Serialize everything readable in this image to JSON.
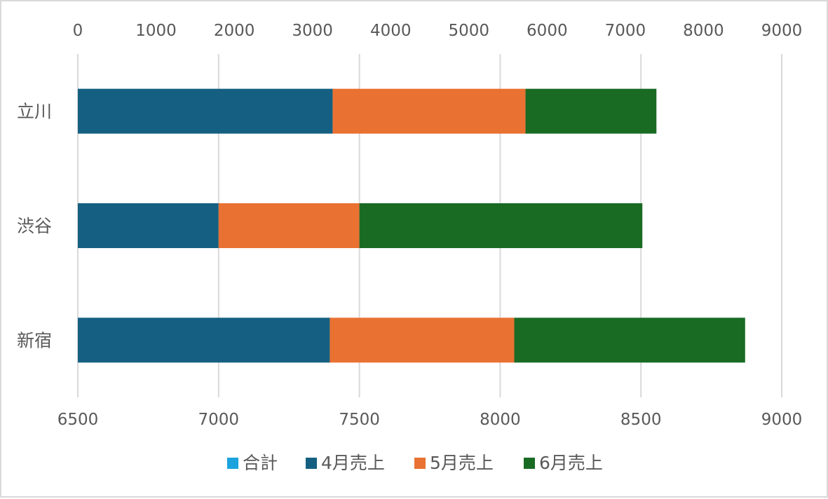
{
  "chart_data": {
    "type": "bar",
    "orientation": "horizontal",
    "stacked": true,
    "title": "",
    "categories": [
      "新宿",
      "渋谷",
      "立川"
    ],
    "axes": {
      "top": {
        "min": 0,
        "max": 9000,
        "step": 1000,
        "ticks": [
          "0",
          "1000",
          "2000",
          "3000",
          "4000",
          "5000",
          "6000",
          "7000",
          "8000",
          "9000"
        ]
      },
      "bottom": {
        "min": 6500,
        "max": 9000,
        "step": 500,
        "ticks": [
          "6500",
          "7000",
          "7500",
          "8000",
          "8500",
          "9000"
        ]
      }
    },
    "grid": true,
    "legend_position": "bottom",
    "series": [
      {
        "name": "合計",
        "color": "#1aa3dc",
        "values": [
          null,
          null,
          null
        ]
      },
      {
        "name": "4月売上",
        "color": "#156082",
        "values": [
          7395,
          7000,
          7405
        ],
        "starts": [
          6500,
          6500,
          6500
        ]
      },
      {
        "name": "5月売上",
        "color": "#e97132",
        "values": [
          8050,
          7500,
          8090
        ],
        "starts": [
          7395,
          7000,
          7405
        ]
      },
      {
        "name": "6月売上",
        "color": "#196b24",
        "values": [
          8870,
          8505,
          8555
        ],
        "starts": [
          8050,
          7500,
          8090
        ]
      }
    ]
  }
}
